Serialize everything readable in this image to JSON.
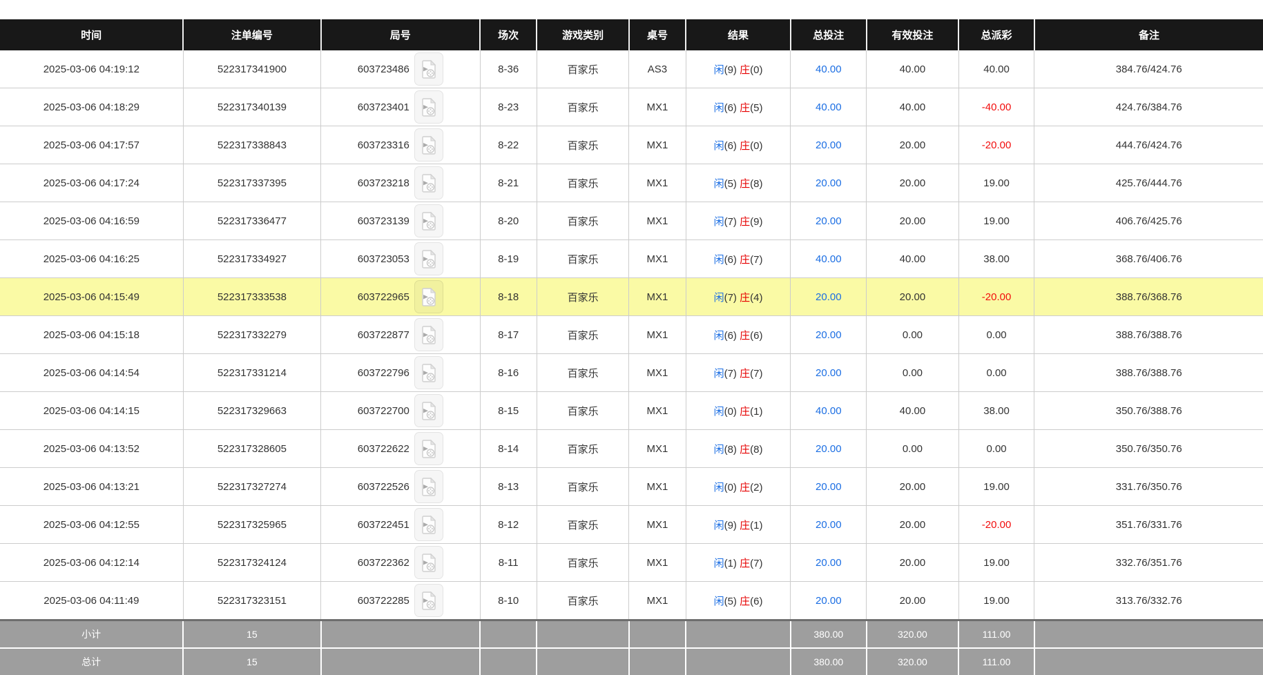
{
  "table": {
    "columns": [
      {
        "key": "time",
        "label": "时间",
        "width": 14.5
      },
      {
        "key": "bet_id",
        "label": "注单编号",
        "width": 10.9
      },
      {
        "key": "round",
        "label": "局号",
        "width": 12.6
      },
      {
        "key": "session",
        "label": "场次",
        "width": 4.5
      },
      {
        "key": "game_type",
        "label": "游戏类别",
        "width": 7.3
      },
      {
        "key": "table_no",
        "label": "桌号",
        "width": 4.5
      },
      {
        "key": "result",
        "label": "结果",
        "width": 8.3
      },
      {
        "key": "total_bet",
        "label": "总投注",
        "width": 6.0
      },
      {
        "key": "valid_bet",
        "label": "有效投注",
        "width": 7.3
      },
      {
        "key": "payout",
        "label": "总派彩",
        "width": 6.0
      },
      {
        "key": "remark",
        "label": "备注",
        "width": 18.1
      }
    ],
    "result_labels": {
      "player": "闲",
      "banker": "庄"
    },
    "icons": {
      "round_video": "video-file-icon"
    },
    "rows": [
      {
        "time": "2025-03-06 04:19:12",
        "bet_id": "522317341900",
        "round": "603723486",
        "session": "8-36",
        "game_type": "百家乐",
        "table_no": "AS3",
        "player": 9,
        "banker": 0,
        "total_bet": "40.00",
        "valid_bet": "40.00",
        "payout": "40.00",
        "remark": "384.76/424.76",
        "highlighted": false
      },
      {
        "time": "2025-03-06 04:18:29",
        "bet_id": "522317340139",
        "round": "603723401",
        "session": "8-23",
        "game_type": "百家乐",
        "table_no": "MX1",
        "player": 6,
        "banker": 5,
        "total_bet": "40.00",
        "valid_bet": "40.00",
        "payout": "-40.00",
        "remark": "424.76/384.76",
        "highlighted": false
      },
      {
        "time": "2025-03-06 04:17:57",
        "bet_id": "522317338843",
        "round": "603723316",
        "session": "8-22",
        "game_type": "百家乐",
        "table_no": "MX1",
        "player": 6,
        "banker": 0,
        "total_bet": "20.00",
        "valid_bet": "20.00",
        "payout": "-20.00",
        "remark": "444.76/424.76",
        "highlighted": false
      },
      {
        "time": "2025-03-06 04:17:24",
        "bet_id": "522317337395",
        "round": "603723218",
        "session": "8-21",
        "game_type": "百家乐",
        "table_no": "MX1",
        "player": 5,
        "banker": 8,
        "total_bet": "20.00",
        "valid_bet": "20.00",
        "payout": "19.00",
        "remark": "425.76/444.76",
        "highlighted": false
      },
      {
        "time": "2025-03-06 04:16:59",
        "bet_id": "522317336477",
        "round": "603723139",
        "session": "8-20",
        "game_type": "百家乐",
        "table_no": "MX1",
        "player": 7,
        "banker": 9,
        "total_bet": "20.00",
        "valid_bet": "20.00",
        "payout": "19.00",
        "remark": "406.76/425.76",
        "highlighted": false
      },
      {
        "time": "2025-03-06 04:16:25",
        "bet_id": "522317334927",
        "round": "603723053",
        "session": "8-19",
        "game_type": "百家乐",
        "table_no": "MX1",
        "player": 6,
        "banker": 7,
        "total_bet": "40.00",
        "valid_bet": "40.00",
        "payout": "38.00",
        "remark": "368.76/406.76",
        "highlighted": false
      },
      {
        "time": "2025-03-06 04:15:49",
        "bet_id": "522317333538",
        "round": "603722965",
        "session": "8-18",
        "game_type": "百家乐",
        "table_no": "MX1",
        "player": 7,
        "banker": 4,
        "total_bet": "20.00",
        "valid_bet": "20.00",
        "payout": "-20.00",
        "remark": "388.76/368.76",
        "highlighted": true
      },
      {
        "time": "2025-03-06 04:15:18",
        "bet_id": "522317332279",
        "round": "603722877",
        "session": "8-17",
        "game_type": "百家乐",
        "table_no": "MX1",
        "player": 6,
        "banker": 6,
        "total_bet": "20.00",
        "valid_bet": "0.00",
        "payout": "0.00",
        "remark": "388.76/388.76",
        "highlighted": false
      },
      {
        "time": "2025-03-06 04:14:54",
        "bet_id": "522317331214",
        "round": "603722796",
        "session": "8-16",
        "game_type": "百家乐",
        "table_no": "MX1",
        "player": 7,
        "banker": 7,
        "total_bet": "20.00",
        "valid_bet": "0.00",
        "payout": "0.00",
        "remark": "388.76/388.76",
        "highlighted": false
      },
      {
        "time": "2025-03-06 04:14:15",
        "bet_id": "522317329663",
        "round": "603722700",
        "session": "8-15",
        "game_type": "百家乐",
        "table_no": "MX1",
        "player": 0,
        "banker": 1,
        "total_bet": "40.00",
        "valid_bet": "40.00",
        "payout": "38.00",
        "remark": "350.76/388.76",
        "highlighted": false
      },
      {
        "time": "2025-03-06 04:13:52",
        "bet_id": "522317328605",
        "round": "603722622",
        "session": "8-14",
        "game_type": "百家乐",
        "table_no": "MX1",
        "player": 8,
        "banker": 8,
        "total_bet": "20.00",
        "valid_bet": "0.00",
        "payout": "0.00",
        "remark": "350.76/350.76",
        "highlighted": false
      },
      {
        "time": "2025-03-06 04:13:21",
        "bet_id": "522317327274",
        "round": "603722526",
        "session": "8-13",
        "game_type": "百家乐",
        "table_no": "MX1",
        "player": 0,
        "banker": 2,
        "total_bet": "20.00",
        "valid_bet": "20.00",
        "payout": "19.00",
        "remark": "331.76/350.76",
        "highlighted": false
      },
      {
        "time": "2025-03-06 04:12:55",
        "bet_id": "522317325965",
        "round": "603722451",
        "session": "8-12",
        "game_type": "百家乐",
        "table_no": "MX1",
        "player": 9,
        "banker": 1,
        "total_bet": "20.00",
        "valid_bet": "20.00",
        "payout": "-20.00",
        "remark": "351.76/331.76",
        "highlighted": false
      },
      {
        "time": "2025-03-06 04:12:14",
        "bet_id": "522317324124",
        "round": "603722362",
        "session": "8-11",
        "game_type": "百家乐",
        "table_no": "MX1",
        "player": 1,
        "banker": 7,
        "total_bet": "20.00",
        "valid_bet": "20.00",
        "payout": "19.00",
        "remark": "332.76/351.76",
        "highlighted": false
      },
      {
        "time": "2025-03-06 04:11:49",
        "bet_id": "522317323151",
        "round": "603722285",
        "session": "8-10",
        "game_type": "百家乐",
        "table_no": "MX1",
        "player": 5,
        "banker": 6,
        "total_bet": "20.00",
        "valid_bet": "20.00",
        "payout": "19.00",
        "remark": "313.76/332.76",
        "highlighted": false
      }
    ],
    "summary_rows": [
      {
        "label": "小计",
        "count": "15",
        "total_bet": "380.00",
        "valid_bet": "320.00",
        "payout": "111.00"
      },
      {
        "label": "总计",
        "count": "15",
        "total_bet": "380.00",
        "valid_bet": "320.00",
        "payout": "111.00"
      }
    ]
  },
  "colors": {
    "header_bg": "#181818",
    "header_text": "#ffffff",
    "accent_blue": "#1b6ee3",
    "negative_red": "#f20d0d",
    "player_blue": "#1b6ee3",
    "banker_red": "#e60000",
    "highlight_yellow": "#fafaa5",
    "summary_bg": "#9e9e9e",
    "grid_border": "#cccccc"
  }
}
